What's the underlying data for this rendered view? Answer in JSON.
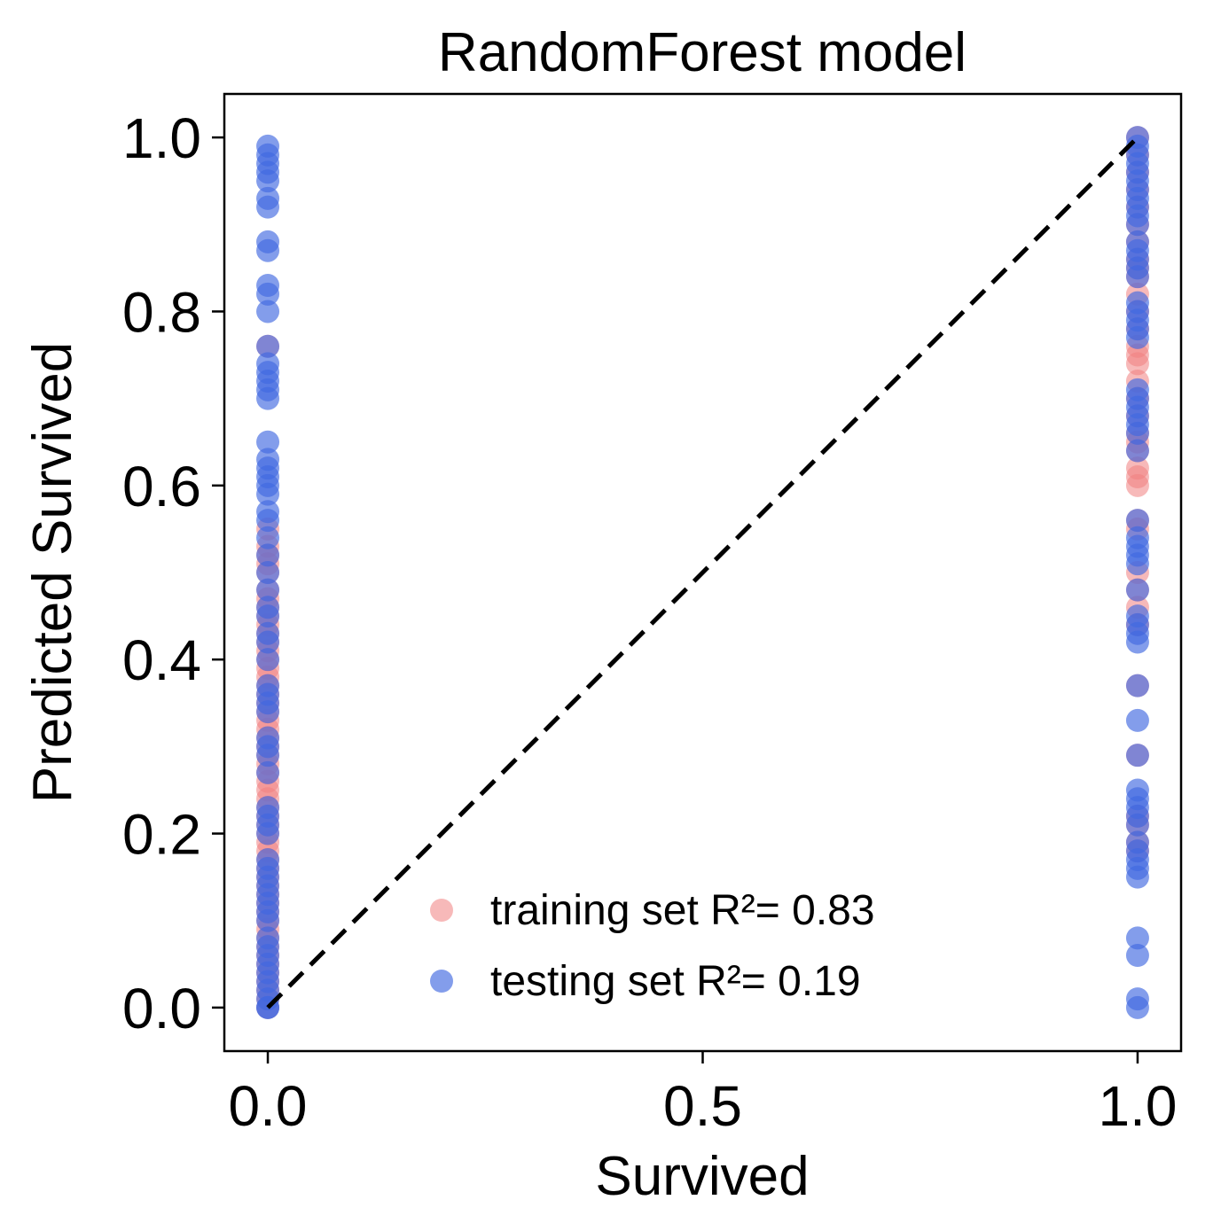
{
  "chart_data": {
    "type": "scatter",
    "title": "RandomForest model",
    "xlabel": "Survived",
    "ylabel": "Predicted Survived",
    "xlim": [
      -0.05,
      1.05
    ],
    "ylim": [
      -0.05,
      1.05
    ],
    "xticks": [
      0.0,
      0.5,
      1.0
    ],
    "xtick_labels": [
      "0.0",
      "0.5",
      "1.0"
    ],
    "yticks": [
      0.0,
      0.2,
      0.4,
      0.6,
      0.8,
      1.0
    ],
    "ytick_labels": [
      "0.0",
      "0.2",
      "0.4",
      "0.6",
      "0.8",
      "1.0"
    ],
    "grid": false,
    "legend_position": "lower-center",
    "reference_line": {
      "x": [
        0,
        1
      ],
      "y": [
        0,
        1
      ],
      "style": "dashed",
      "color": "#000000"
    },
    "series": [
      {
        "name": "training set R²= 0.83",
        "color": "#f08080",
        "opacity": 0.55,
        "points": [
          {
            "x": 0,
            "ys": [
              0.0,
              0.01,
              0.02,
              0.03,
              0.04,
              0.05,
              0.06,
              0.07,
              0.08,
              0.09,
              0.1,
              0.11,
              0.12,
              0.13,
              0.14,
              0.15,
              0.16,
              0.17,
              0.18,
              0.19,
              0.2,
              0.21,
              0.22,
              0.23,
              0.24,
              0.25,
              0.26,
              0.27,
              0.28,
              0.29,
              0.3,
              0.31,
              0.32,
              0.33,
              0.34,
              0.35,
              0.36,
              0.37,
              0.38,
              0.39,
              0.4,
              0.41,
              0.42,
              0.43,
              0.44,
              0.45,
              0.46,
              0.47,
              0.48,
              0.5,
              0.51,
              0.52,
              0.53,
              0.55,
              0.76
            ]
          },
          {
            "x": 1,
            "ys": [
              0.18,
              0.19,
              0.21,
              0.22,
              0.29,
              0.37,
              0.44,
              0.46,
              0.48,
              0.5,
              0.55,
              0.56,
              0.6,
              0.61,
              0.62,
              0.64,
              0.65,
              0.66,
              0.68,
              0.7,
              0.72,
              0.74,
              0.75,
              0.76,
              0.78,
              0.8,
              0.82,
              0.84,
              0.85,
              0.86,
              0.88,
              0.9,
              0.92,
              0.94,
              0.96,
              0.98,
              1.0
            ]
          }
        ]
      },
      {
        "name": "testing set R²= 0.19",
        "color": "#4169e1",
        "opacity": 0.65,
        "points": [
          {
            "x": 0,
            "ys": [
              0.0,
              0.0,
              0.01,
              0.02,
              0.03,
              0.04,
              0.05,
              0.06,
              0.07,
              0.08,
              0.1,
              0.11,
              0.12,
              0.13,
              0.14,
              0.15,
              0.16,
              0.17,
              0.2,
              0.21,
              0.22,
              0.23,
              0.27,
              0.29,
              0.3,
              0.31,
              0.34,
              0.35,
              0.36,
              0.37,
              0.4,
              0.42,
              0.43,
              0.45,
              0.46,
              0.48,
              0.5,
              0.52,
              0.54,
              0.56,
              0.57,
              0.59,
              0.6,
              0.61,
              0.62,
              0.63,
              0.65,
              0.7,
              0.71,
              0.72,
              0.73,
              0.74,
              0.76,
              0.8,
              0.82,
              0.83,
              0.87,
              0.88,
              0.92,
              0.93,
              0.95,
              0.96,
              0.97,
              0.98,
              0.99
            ]
          },
          {
            "x": 1,
            "ys": [
              0.0,
              0.01,
              0.06,
              0.08,
              0.15,
              0.16,
              0.17,
              0.18,
              0.19,
              0.21,
              0.22,
              0.23,
              0.24,
              0.25,
              0.29,
              0.33,
              0.37,
              0.42,
              0.43,
              0.44,
              0.45,
              0.48,
              0.51,
              0.52,
              0.53,
              0.54,
              0.56,
              0.64,
              0.66,
              0.67,
              0.68,
              0.69,
              0.7,
              0.71,
              0.77,
              0.78,
              0.79,
              0.8,
              0.81,
              0.84,
              0.85,
              0.86,
              0.87,
              0.88,
              0.9,
              0.91,
              0.92,
              0.93,
              0.94,
              0.95,
              0.96,
              0.97,
              0.98,
              0.99,
              1.0
            ]
          }
        ]
      }
    ]
  }
}
